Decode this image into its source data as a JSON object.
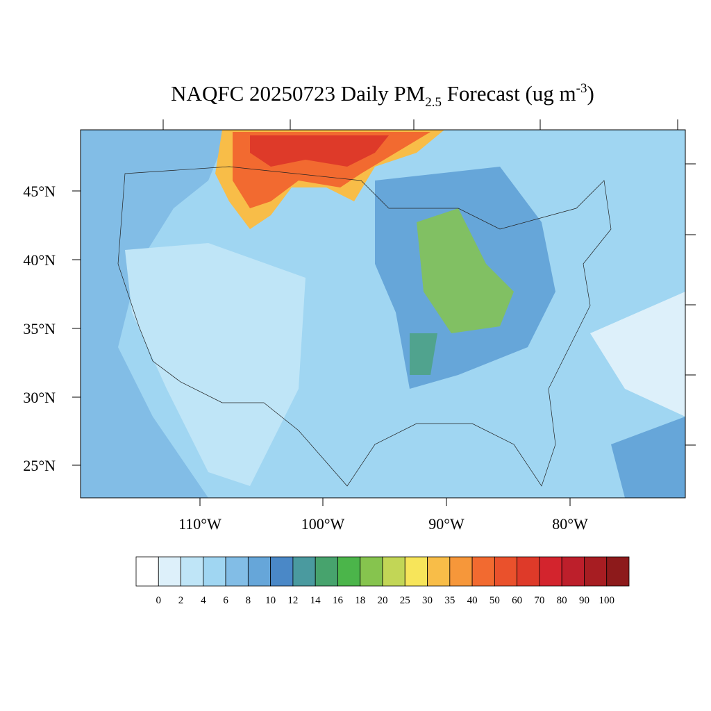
{
  "title": {
    "main": "NAQFC 20250723 Daily PM",
    "subscript": "2.5",
    "middle": " Forecast (ug m",
    "superscript": "-3",
    "end": ")"
  },
  "latitude_labels": [
    "45°N",
    "40°N",
    "35°N",
    "30°N",
    "25°N"
  ],
  "longitude_labels": [
    "110°W",
    "100°W",
    "90°W",
    "80°W"
  ],
  "colorbar": {
    "levels": [
      0,
      2,
      4,
      6,
      8,
      10,
      12,
      14,
      16,
      18,
      20,
      25,
      30,
      35,
      40,
      50,
      60,
      70,
      80,
      90,
      100
    ],
    "colors": [
      "#ffffff",
      "#ddf0fa",
      "#bfe5f7",
      "#a0d6f2",
      "#82bde6",
      "#66a6d9",
      "#4a88c7",
      "#4a9a9f",
      "#47a36d",
      "#4bb54a",
      "#86c44e",
      "#c2d656",
      "#f7e55a",
      "#f8bd48",
      "#f6973a",
      "#f26a30",
      "#ea512c",
      "#de3a29",
      "#d3242d",
      "#bd1f2b",
      "#a71d22",
      "#8d1a1b"
    ]
  }
}
